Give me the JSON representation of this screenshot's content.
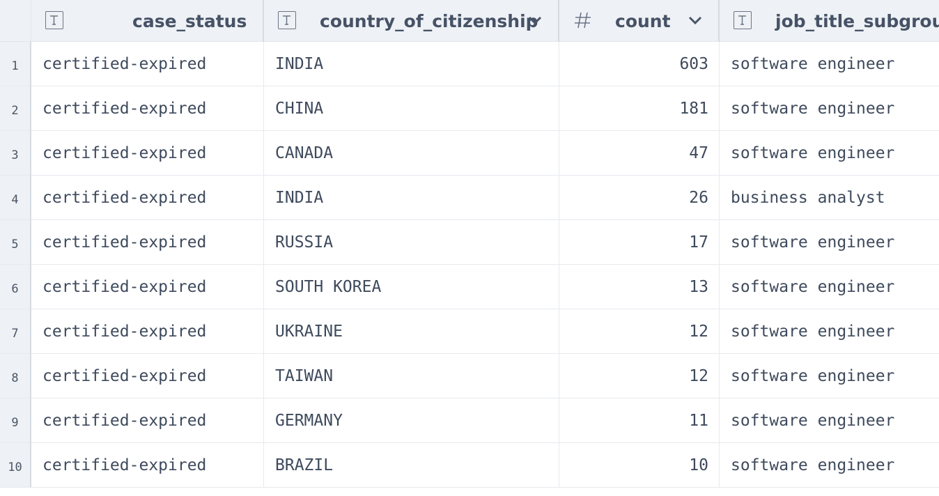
{
  "columns": [
    {
      "name": "case_status",
      "type_icon": "text-type-icon"
    },
    {
      "name": "country_of_citizenship",
      "type_icon": "text-type-icon"
    },
    {
      "name": "count",
      "type_icon": "number-hash-icon"
    },
    {
      "name": "job_title_subgroup",
      "type_icon": "text-type-icon"
    }
  ],
  "rows": [
    {
      "n": "1",
      "case_status": "certified-expired",
      "country": "INDIA",
      "count": "603",
      "job": "software engineer"
    },
    {
      "n": "2",
      "case_status": "certified-expired",
      "country": "CHINA",
      "count": "181",
      "job": "software engineer"
    },
    {
      "n": "3",
      "case_status": "certified-expired",
      "country": "CANADA",
      "count": "47",
      "job": "software engineer"
    },
    {
      "n": "4",
      "case_status": "certified-expired",
      "country": "INDIA",
      "count": "26",
      "job": "business analyst"
    },
    {
      "n": "5",
      "case_status": "certified-expired",
      "country": "RUSSIA",
      "count": "17",
      "job": "software engineer"
    },
    {
      "n": "6",
      "case_status": "certified-expired",
      "country": "SOUTH KOREA",
      "count": "13",
      "job": "software engineer"
    },
    {
      "n": "7",
      "case_status": "certified-expired",
      "country": "UKRAINE",
      "count": "12",
      "job": "software engineer"
    },
    {
      "n": "8",
      "case_status": "certified-expired",
      "country": "TAIWAN",
      "count": "12",
      "job": "software engineer"
    },
    {
      "n": "9",
      "case_status": "certified-expired",
      "country": "GERMANY",
      "count": "11",
      "job": "software engineer"
    },
    {
      "n": "10",
      "case_status": "certified-expired",
      "country": "BRAZIL",
      "count": "10",
      "job": "software engineer"
    }
  ]
}
